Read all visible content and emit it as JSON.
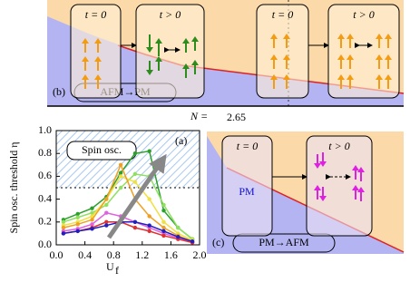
{
  "chart_data": {
    "type": "line",
    "x": [
      0.1,
      0.3,
      0.5,
      0.7,
      0.9,
      1.1,
      1.3,
      1.5,
      1.7,
      1.9
    ],
    "series": [
      {
        "color": "#2ca02c",
        "values": [
          0.22,
          0.27,
          0.32,
          0.42,
          0.63,
          0.8,
          0.82,
          0.3,
          0.15,
          0.05
        ]
      },
      {
        "color": "#90e060",
        "values": [
          0.2,
          0.24,
          0.28,
          0.35,
          0.5,
          0.62,
          0.6,
          0.35,
          0.15,
          0.05
        ]
      },
      {
        "color": "#f0e040",
        "values": [
          0.17,
          0.2,
          0.25,
          0.4,
          0.6,
          0.55,
          0.4,
          0.2,
          0.1,
          0.04
        ]
      },
      {
        "color": "#f0a020",
        "values": [
          0.15,
          0.18,
          0.22,
          0.4,
          0.7,
          0.4,
          0.25,
          0.15,
          0.08,
          0.03
        ]
      },
      {
        "color": "#e060e0",
        "values": [
          0.12,
          0.14,
          0.18,
          0.28,
          0.25,
          0.2,
          0.15,
          0.1,
          0.06,
          0.02
        ]
      },
      {
        "color": "#e03030",
        "values": [
          0.1,
          0.12,
          0.15,
          0.2,
          0.2,
          0.15,
          0.12,
          0.08,
          0.05,
          0.02
        ]
      },
      {
        "color": "#2020c0",
        "values": [
          0.1,
          0.12,
          0.14,
          0.17,
          0.2,
          0.2,
          0.17,
          0.12,
          0.07,
          0.03
        ]
      }
    ],
    "xlim": [
      0,
      2.0
    ],
    "ylim": [
      0,
      1.0
    ],
    "xticks": [
      {
        "value": 0,
        "label": "0.0"
      },
      0.4,
      0.8,
      1.2,
      1.6,
      {
        "value": 2,
        "label": "2.0"
      }
    ],
    "yticks": [
      {
        "value": 0,
        "label": "0.0"
      },
      0.2,
      0.4,
      0.6,
      0.8,
      {
        "value": 1,
        "label": "1.0"
      }
    ],
    "x_label": "U",
    "x_label_sub": "f",
    "y_label": "Spin osc. threshold η",
    "threshold": 0.5,
    "region_label": "Spin osc.",
    "panel_label": "(a)"
  },
  "panel_b": {
    "label": "(b)",
    "transition": "AFM→PM",
    "boxes": [
      "t = 0",
      "t > 0",
      "t = 0",
      "t > 0"
    ]
  },
  "panel_c": {
    "label": "(c)",
    "transition": "PM→AFM",
    "boxes": [
      "t = 0",
      "t > 0"
    ],
    "state": "PM"
  },
  "caption": {
    "n": "N =",
    "value": "2.65"
  }
}
